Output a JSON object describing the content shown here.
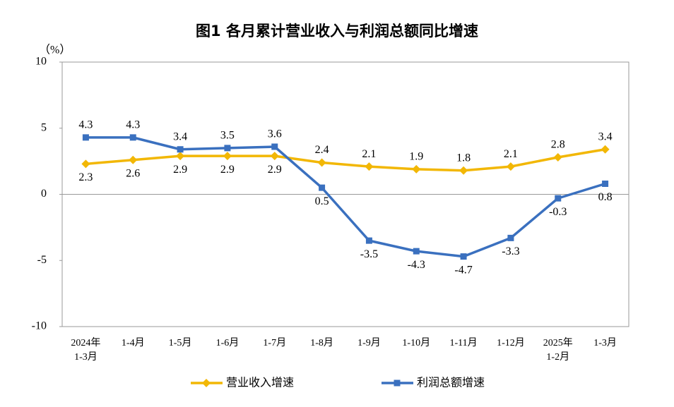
{
  "chart_data": {
    "type": "line",
    "title": "图1  各月累计营业收入与利润总额同比增速",
    "y_unit": "（%）",
    "categories": [
      [
        "2024年",
        "1-3月"
      ],
      [
        "1-4月"
      ],
      [
        "1-5月"
      ],
      [
        "1-6月"
      ],
      [
        "1-7月"
      ],
      [
        "1-8月"
      ],
      [
        "1-9月"
      ],
      [
        "1-10月"
      ],
      [
        "1-11月"
      ],
      [
        "1-12月"
      ],
      [
        "2025年",
        "1-2月"
      ],
      [
        "1-3月"
      ]
    ],
    "series": [
      {
        "name": "营业收入增速",
        "color": "#f2b705",
        "marker": "diamond",
        "values": [
          2.3,
          2.6,
          2.9,
          2.9,
          2.9,
          2.4,
          2.1,
          1.9,
          1.8,
          2.1,
          2.8,
          3.4
        ]
      },
      {
        "name": "利润总额增速",
        "color": "#3a70bf",
        "marker": "square",
        "values": [
          4.3,
          4.3,
          3.4,
          3.5,
          3.6,
          0.5,
          -3.5,
          -4.3,
          -4.7,
          -3.3,
          -0.3,
          0.8
        ]
      }
    ],
    "ylim": [
      -10,
      10
    ],
    "yticks": [
      -10,
      -5,
      0,
      5,
      10
    ],
    "zero_line": true,
    "grid": false,
    "legend": "bottom"
  }
}
